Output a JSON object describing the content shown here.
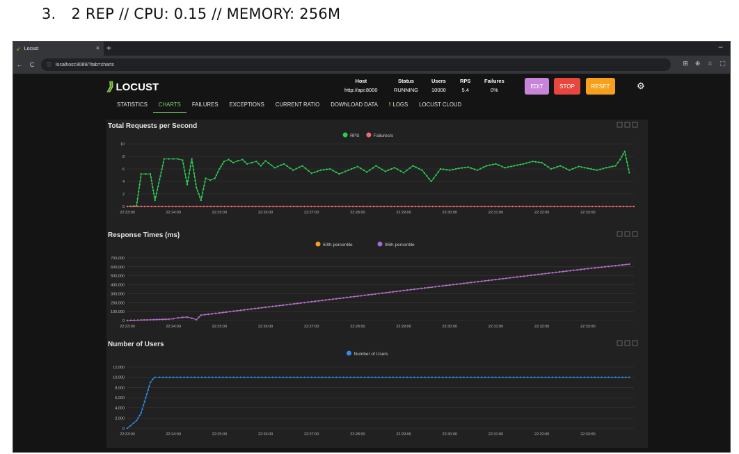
{
  "caption": {
    "number": "3.",
    "text": "2 REP // CPU: 0.15 // MEMORY: 256M"
  },
  "browser": {
    "tab_title": "Locust",
    "tab_close": "×",
    "new_tab": "+",
    "minimize": "−",
    "url": "localhost:8089/?tab=charts",
    "nav": {
      "back": "←",
      "forward": "→",
      "reload": "C",
      "info": "ⓘ"
    },
    "icons": {
      "translate": "⊞",
      "zoom": "⊕",
      "bookmark": "☆",
      "extensions": "⬚"
    }
  },
  "app": {
    "logo_text": "LOCUST",
    "stats": [
      {
        "label": "Host",
        "value": "http://api:8000"
      },
      {
        "label": "Status",
        "value": "RUNNING"
      },
      {
        "label": "Users",
        "value": "10000"
      },
      {
        "label": "RPS",
        "value": "5.4"
      },
      {
        "label": "Failures",
        "value": "0%"
      }
    ],
    "buttons": {
      "edit": "EDIT",
      "stop": "STOP",
      "reset": "RESET"
    },
    "colors": {
      "edit": "#c884d8",
      "stop": "#e8473d",
      "reset": "#f7a01b",
      "accent": "#7bd16b"
    },
    "tabs": [
      {
        "label": "STATISTICS",
        "active": false
      },
      {
        "label": "CHARTS",
        "active": true
      },
      {
        "label": "FAILURES",
        "active": false
      },
      {
        "label": "EXCEPTIONS",
        "active": false
      },
      {
        "label": "CURRENT RATIO",
        "active": false
      },
      {
        "label": "DOWNLOAD DATA",
        "active": false
      },
      {
        "label": "LOGS",
        "active": false,
        "badge": "!"
      },
      {
        "label": "LOCUST CLOUD",
        "active": false
      }
    ]
  },
  "chart_data": [
    {
      "type": "line",
      "title": "Total Requests per Second",
      "x_tick_labels": [
        "22:23:00",
        "22:24:00",
        "22:25:00",
        "22:26:00",
        "22:27:00",
        "22:28:00",
        "22:29:00",
        "22:30:00",
        "22:31:00",
        "22:32:00",
        "22:33:00"
      ],
      "x_range_minutes": [
        0,
        11
      ],
      "ylim": [
        0,
        10
      ],
      "y_ticks": [
        0,
        2,
        4,
        6,
        8,
        10
      ],
      "y_tick_labels": [
        "0",
        "2",
        "4",
        "6",
        "8",
        "10"
      ],
      "legend_position": "top-center",
      "series": [
        {
          "name": "RPS",
          "color": "#2ecc55",
          "x": [
            0,
            0.2,
            0.3,
            0.4,
            0.5,
            0.6,
            0.8,
            0.9,
            1.0,
            1.1,
            1.2,
            1.3,
            1.4,
            1.5,
            1.6,
            1.7,
            1.8,
            1.9,
            2.0,
            2.1,
            2.2,
            2.3,
            2.4,
            2.5,
            2.6,
            2.7,
            2.8,
            2.9,
            3.0,
            3.2,
            3.4,
            3.6,
            3.8,
            4.0,
            4.2,
            4.4,
            4.6,
            4.8,
            5.0,
            5.2,
            5.4,
            5.6,
            5.8,
            6.0,
            6.2,
            6.4,
            6.6,
            6.8,
            7.0,
            7.2,
            7.4,
            7.6,
            7.8,
            8.0,
            8.2,
            8.4,
            8.6,
            8.8,
            9.0,
            9.2,
            9.4,
            9.6,
            9.8,
            10.0,
            10.2,
            10.4,
            10.6,
            10.7,
            10.8,
            10.9
          ],
          "values": [
            0,
            0.1,
            5.2,
            5.2,
            5.2,
            1.0,
            7.6,
            7.6,
            7.6,
            7.6,
            7.4,
            3.5,
            7.6,
            3.0,
            1.0,
            4.5,
            4.2,
            4.5,
            6.0,
            7.2,
            7.5,
            7.0,
            7.3,
            7.5,
            6.8,
            7.0,
            7.2,
            6.5,
            7.3,
            6.2,
            6.8,
            5.8,
            6.5,
            5.3,
            5.8,
            6.0,
            5.2,
            5.8,
            6.4,
            5.5,
            6.5,
            5.6,
            6.2,
            5.4,
            6.5,
            5.8,
            4.0,
            6.0,
            5.8,
            6.1,
            6.3,
            5.8,
            6.5,
            6.8,
            6.2,
            6.5,
            6.8,
            7.2,
            7.0,
            6.0,
            6.5,
            5.8,
            6.4,
            6.1,
            5.8,
            6.2,
            6.5,
            7.5,
            8.8,
            5.4
          ]
        },
        {
          "name": "Failures/s",
          "color": "#f06b6b",
          "x": [
            0,
            11
          ],
          "values": [
            0,
            0
          ]
        }
      ]
    },
    {
      "type": "line",
      "title": "Response Times (ms)",
      "x_tick_labels": [
        "22:23:00",
        "22:24:00",
        "22:25:00",
        "22:26:00",
        "22:27:00",
        "22:28:00",
        "22:29:00",
        "22:30:00",
        "22:31:00",
        "22:32:00",
        "22:33:00"
      ],
      "x_range_minutes": [
        0,
        11
      ],
      "ylim": [
        0,
        700000
      ],
      "y_ticks": [
        0,
        100000,
        200000,
        300000,
        400000,
        500000,
        600000,
        700000
      ],
      "y_tick_labels": [
        "0",
        "100,000",
        "200,000",
        "300,000",
        "400,000",
        "500,000",
        "600,000",
        "700,000"
      ],
      "legend_position": "top-center",
      "series": [
        {
          "name": "50th percentile",
          "color": "#f7a01b",
          "x": [
            0,
            0.3,
            0.5,
            0.7,
            0.9,
            1.0,
            1.1,
            1.2,
            1.3,
            1.4,
            1.5,
            1.6,
            2.0,
            3.0,
            4.0,
            5.0,
            6.0,
            7.0,
            8.0,
            9.0,
            10.0,
            10.9
          ],
          "values": [
            0,
            5000,
            8000,
            12000,
            15000,
            20000,
            30000,
            35000,
            38000,
            25000,
            10000,
            60000,
            85000,
            148000,
            210000,
            272000,
            335000,
            397000,
            458000,
            520000,
            580000,
            630000
          ]
        },
        {
          "name": "95th percentile",
          "color": "#a86ad8",
          "x": [
            0,
            0.3,
            0.5,
            0.7,
            0.9,
            1.0,
            1.1,
            1.2,
            1.3,
            1.4,
            1.5,
            1.6,
            2.0,
            3.0,
            4.0,
            5.0,
            6.0,
            7.0,
            8.0,
            9.0,
            10.0,
            10.9
          ],
          "values": [
            0,
            5000,
            8000,
            12000,
            15000,
            20000,
            30000,
            35000,
            38000,
            25000,
            10000,
            60000,
            85000,
            148000,
            210000,
            272000,
            335000,
            397000,
            458000,
            520000,
            580000,
            630000
          ]
        }
      ]
    },
    {
      "type": "line",
      "title": "Number of Users",
      "x_tick_labels": [
        "22:23:00",
        "22:24:00",
        "22:25:00",
        "22:26:00",
        "22:27:00",
        "22:28:00",
        "22:29:00",
        "22:30:00",
        "22:31:00",
        "22:32:00",
        "22:33:00"
      ],
      "x_range_minutes": [
        0,
        11
      ],
      "ylim": [
        0,
        12000
      ],
      "y_ticks": [
        0,
        2000,
        4000,
        6000,
        8000,
        10000,
        12000
      ],
      "y_tick_labels": [
        "0",
        "2,000",
        "4,000",
        "6,000",
        "8,000",
        "10,000",
        "12,000"
      ],
      "legend_position": "top-center",
      "series": [
        {
          "name": "Number of Users",
          "color": "#2f8cf0",
          "x": [
            0,
            0.2,
            0.3,
            0.35,
            0.4,
            0.45,
            0.5,
            0.55,
            0.6,
            0.7,
            1.0,
            2.0,
            3.0,
            4.0,
            5.0,
            6.0,
            7.0,
            8.0,
            9.0,
            10.0,
            10.9
          ],
          "values": [
            0,
            1500,
            3000,
            4500,
            6000,
            7500,
            9000,
            9600,
            10000,
            10000,
            10000,
            10000,
            10000,
            10000,
            10000,
            10000,
            10000,
            10000,
            10000,
            10000,
            10000
          ]
        }
      ]
    }
  ]
}
